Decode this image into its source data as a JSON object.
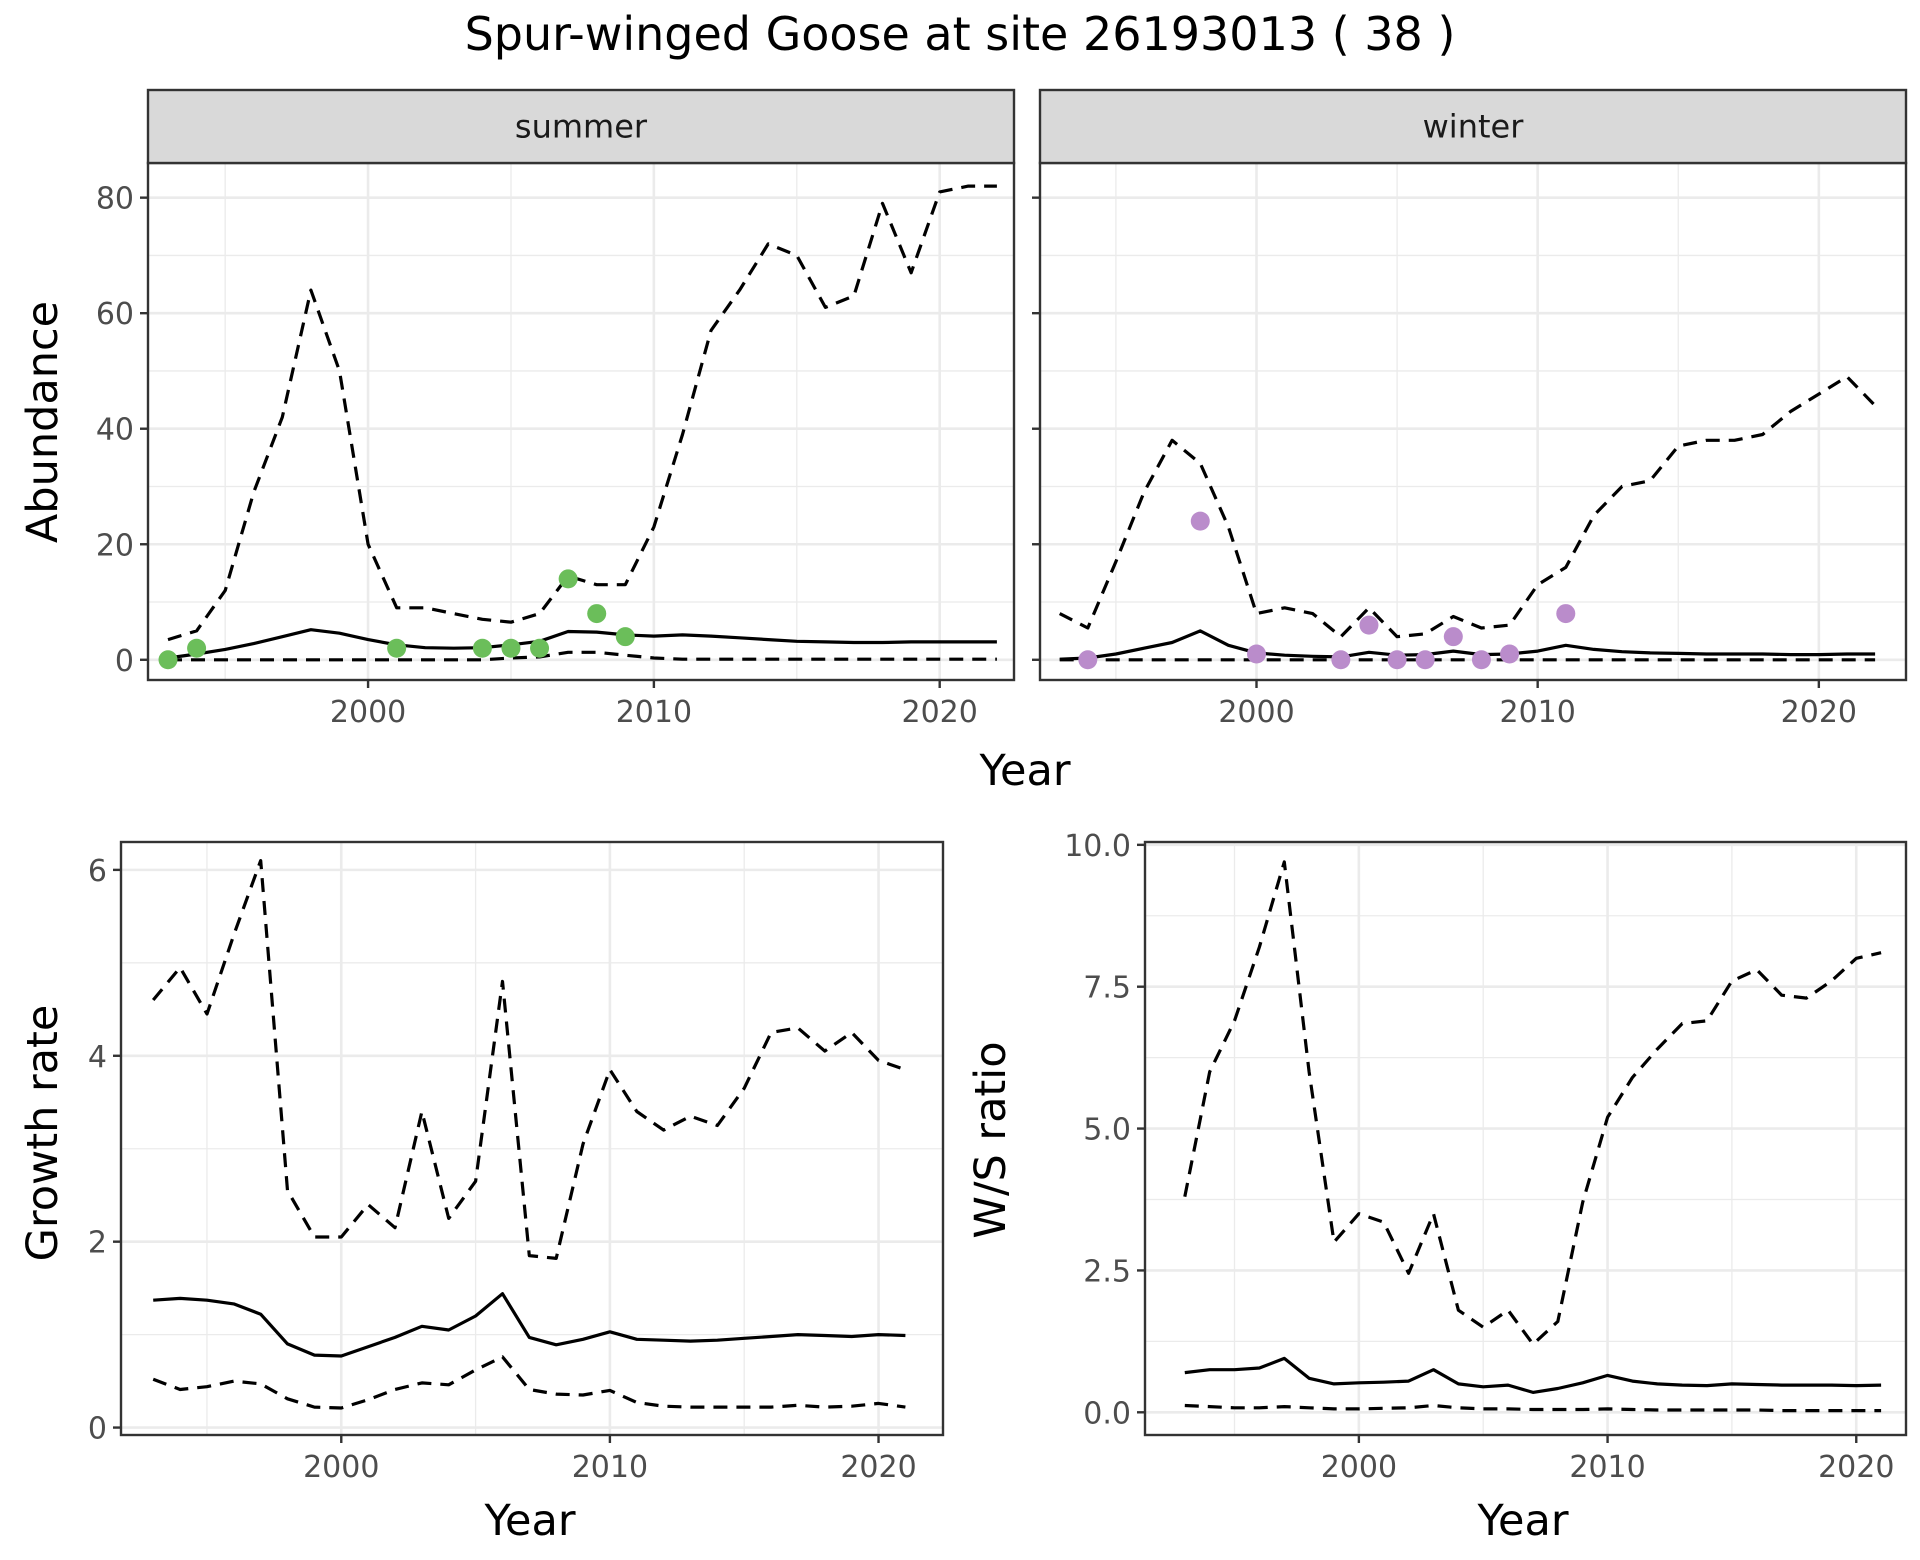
{
  "title": "Spur-winged Goose at site 26193013 ( 38 )",
  "colors": {
    "summer_points": "#6BBE5A",
    "winter_points": "#BA8CCB",
    "line": "#000000"
  },
  "chart_data": [
    {
      "type": "line",
      "facet": "summer",
      "xlabel": "Year",
      "ylabel": "Abundance",
      "xlim": [
        1992.3,
        2022.6
      ],
      "ylim": [
        -3.5,
        86
      ],
      "xticks": [
        2000,
        2010,
        2020
      ],
      "yticks": [
        0,
        20,
        40,
        60,
        80
      ],
      "grid": true,
      "x": [
        1993,
        1994,
        1995,
        1996,
        1997,
        1998,
        1999,
        2000,
        2001,
        2002,
        2003,
        2004,
        2005,
        2006,
        2007,
        2008,
        2009,
        2010,
        2011,
        2012,
        2013,
        2014,
        2015,
        2016,
        2017,
        2018,
        2019,
        2020,
        2021,
        2022
      ],
      "series": [
        {
          "role": "estimate",
          "style": "solid",
          "values": [
            0.3,
            1,
            1.8,
            2.8,
            4,
            5.2,
            4.6,
            3.5,
            2.6,
            2.1,
            2,
            2.1,
            2.6,
            3.2,
            4.9,
            4.8,
            4.3,
            4.1,
            4.3,
            4.1,
            3.8,
            3.5,
            3.2,
            3.1,
            3,
            3,
            3.1,
            3.1,
            3.1,
            3.1
          ]
        },
        {
          "role": "upper",
          "style": "dashed",
          "values": [
            3.5,
            5,
            12,
            29,
            42,
            64,
            50,
            20,
            9,
            9,
            8,
            7,
            6.5,
            8,
            14.5,
            13,
            13,
            23,
            39,
            57,
            64,
            72,
            70,
            61,
            63,
            79,
            67,
            81,
            82,
            82
          ]
        },
        {
          "role": "lower",
          "style": "dashed",
          "values": [
            0,
            0,
            0,
            0,
            0,
            0,
            0,
            0,
            0,
            0,
            0,
            0,
            0.3,
            0.5,
            1.3,
            1.3,
            0.8,
            0.3,
            0.1,
            0.1,
            0.1,
            0.1,
            0.1,
            0.1,
            0.1,
            0.1,
            0.1,
            0.1,
            0.1,
            0.1
          ]
        }
      ],
      "points": {
        "x": [
          1993,
          1994,
          2001,
          2004,
          2005,
          2006,
          2007,
          2008,
          2009
        ],
        "y": [
          0,
          2,
          2,
          2,
          2,
          2,
          14,
          8,
          4
        ]
      }
    },
    {
      "type": "line",
      "facet": "winter",
      "xlabel": "Year",
      "ylabel": "Abundance",
      "xlim": [
        1992.3,
        2023.1
      ],
      "ylim": [
        -3.5,
        86
      ],
      "xticks": [
        2000,
        2010,
        2020
      ],
      "yticks": [
        0,
        20,
        40,
        60,
        80
      ],
      "grid": true,
      "x": [
        1993,
        1994,
        1995,
        1996,
        1997,
        1998,
        1999,
        2000,
        2001,
        2002,
        2003,
        2004,
        2005,
        2006,
        2007,
        2008,
        2009,
        2010,
        2011,
        2012,
        2013,
        2014,
        2015,
        2016,
        2017,
        2018,
        2019,
        2020,
        2021,
        2022
      ],
      "series": [
        {
          "role": "estimate",
          "style": "solid",
          "values": [
            0.1,
            0.3,
            1,
            2,
            3,
            5,
            2.5,
            1.2,
            0.8,
            0.6,
            0.5,
            1.3,
            0.8,
            0.9,
            1.5,
            0.9,
            1,
            1.5,
            2.5,
            1.8,
            1.4,
            1.2,
            1.1,
            1,
            1,
            1,
            0.9,
            0.9,
            1,
            1
          ]
        },
        {
          "role": "upper",
          "style": "dashed",
          "values": [
            8,
            5.5,
            17,
            29,
            38,
            34,
            23,
            8,
            9,
            8,
            4,
            9,
            4,
            4.5,
            7.5,
            5.5,
            6,
            13,
            16,
            25,
            30,
            31,
            37,
            38,
            38,
            39,
            43,
            46,
            49,
            44
          ]
        },
        {
          "role": "lower",
          "style": "dashed",
          "values": [
            0,
            0,
            0,
            0,
            0,
            0,
            0,
            0,
            0,
            0,
            0,
            0,
            0,
            0,
            0,
            0,
            0,
            0,
            0,
            0,
            0,
            0,
            0,
            0,
            0,
            0,
            0,
            0,
            0,
            0
          ]
        }
      ],
      "points": {
        "x": [
          1994,
          1998,
          2000,
          2003,
          2004,
          2005,
          2006,
          2007,
          2008,
          2009,
          2011
        ],
        "y": [
          0,
          24,
          1,
          0,
          6,
          0,
          0,
          4,
          0,
          1,
          8
        ]
      }
    },
    {
      "type": "line",
      "xlabel": "Year",
      "ylabel": "Growth rate",
      "xlim": [
        1991.8,
        2022.4
      ],
      "ylim": [
        -0.08,
        6.3
      ],
      "xticks": [
        2000,
        2010,
        2020
      ],
      "yticks": [
        0,
        2,
        4,
        6
      ],
      "grid": true,
      "x": [
        1993,
        1994,
        1995,
        1996,
        1997,
        1998,
        1999,
        2000,
        2001,
        2002,
        2003,
        2004,
        2005,
        2006,
        2007,
        2008,
        2009,
        2010,
        2011,
        2012,
        2013,
        2014,
        2015,
        2016,
        2017,
        2018,
        2019,
        2020,
        2021
      ],
      "series": [
        {
          "role": "estimate",
          "style": "solid",
          "values": [
            1.37,
            1.39,
            1.37,
            1.33,
            1.22,
            0.9,
            0.78,
            0.77,
            0.87,
            0.97,
            1.09,
            1.05,
            1.2,
            1.44,
            0.97,
            0.89,
            0.95,
            1.03,
            0.95,
            0.94,
            0.93,
            0.94,
            0.96,
            0.98,
            1,
            0.99,
            0.98,
            1,
            0.99
          ]
        },
        {
          "role": "upper",
          "style": "dashed",
          "values": [
            4.6,
            4.95,
            4.45,
            5.3,
            6.1,
            2.55,
            2.05,
            2.05,
            2.4,
            2.15,
            3.4,
            2.25,
            2.65,
            4.8,
            1.85,
            1.82,
            3.05,
            3.85,
            3.4,
            3.2,
            3.35,
            3.25,
            3.65,
            4.25,
            4.3,
            4.05,
            4.25,
            3.95,
            3.85
          ]
        },
        {
          "role": "lower",
          "style": "dashed",
          "values": [
            0.52,
            0.41,
            0.44,
            0.5,
            0.47,
            0.31,
            0.22,
            0.21,
            0.3,
            0.41,
            0.48,
            0.46,
            0.62,
            0.76,
            0.41,
            0.36,
            0.35,
            0.4,
            0.27,
            0.23,
            0.22,
            0.22,
            0.22,
            0.22,
            0.24,
            0.22,
            0.23,
            0.26,
            0.22
          ]
        }
      ]
    },
    {
      "type": "line",
      "xlabel": "Year",
      "ylabel": "W/S ratio",
      "xlim": [
        1991.4,
        2022
      ],
      "ylim": [
        -0.4,
        10.05
      ],
      "xticks": [
        2000,
        2010,
        2020
      ],
      "yticks": [
        0.0,
        2.5,
        5.0,
        7.5,
        10.0
      ],
      "ytick_labels": [
        "0.0",
        "2.5",
        "5.0",
        "7.5",
        "10.0"
      ],
      "grid": true,
      "x": [
        1993,
        1994,
        1995,
        1996,
        1997,
        1998,
        1999,
        2000,
        2001,
        2002,
        2003,
        2004,
        2005,
        2006,
        2007,
        2008,
        2009,
        2010,
        2011,
        2012,
        2013,
        2014,
        2015,
        2016,
        2017,
        2018,
        2019,
        2020,
        2021
      ],
      "series": [
        {
          "role": "estimate",
          "style": "solid",
          "values": [
            0.7,
            0.75,
            0.75,
            0.78,
            0.95,
            0.6,
            0.5,
            0.52,
            0.53,
            0.55,
            0.75,
            0.5,
            0.45,
            0.48,
            0.35,
            0.42,
            0.52,
            0.65,
            0.55,
            0.5,
            0.48,
            0.47,
            0.5,
            0.49,
            0.48,
            0.48,
            0.48,
            0.47,
            0.48
          ]
        },
        {
          "role": "upper",
          "style": "dashed",
          "values": [
            3.8,
            6,
            6.9,
            8.2,
            9.7,
            6,
            3,
            3.5,
            3.35,
            2.45,
            3.5,
            1.8,
            1.5,
            1.8,
            1.2,
            1.6,
            3.7,
            5.2,
            5.9,
            6.4,
            6.85,
            6.9,
            7.6,
            7.8,
            7.35,
            7.3,
            7.6,
            8,
            8.1
          ]
        },
        {
          "role": "lower",
          "style": "dashed",
          "values": [
            0.12,
            0.1,
            0.08,
            0.08,
            0.1,
            0.08,
            0.06,
            0.06,
            0.07,
            0.08,
            0.12,
            0.08,
            0.06,
            0.06,
            0.05,
            0.05,
            0.05,
            0.06,
            0.05,
            0.04,
            0.04,
            0.04,
            0.04,
            0.04,
            0.03,
            0.03,
            0.03,
            0.03,
            0.03
          ]
        }
      ]
    }
  ]
}
